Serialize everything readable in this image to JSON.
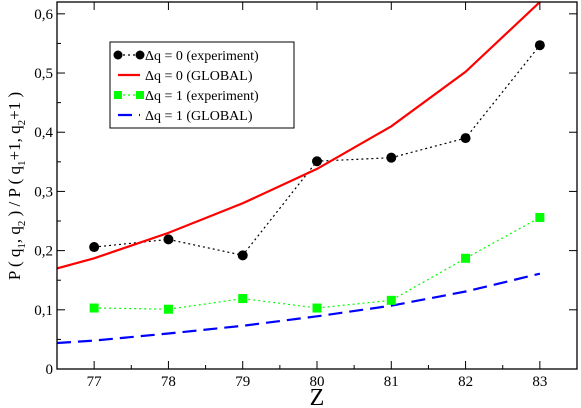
{
  "chart_data": {
    "type": "line",
    "title": "",
    "xlabel": "Z",
    "ylabel": "P ( q1, q2 ) / P ( q1+1, q2+1 )",
    "ylabel_parts": {
      "prefix": "P ( q",
      "sub1": "1",
      "mid1": ", q",
      "sub2": "2",
      "mid2": " ) / P ( q",
      "sub3": "1",
      "mid3": "+1, q",
      "sub4": "2",
      "suffix": "+1 )"
    },
    "xlim": [
      76.5,
      83.5
    ],
    "ylim": [
      0,
      0.62
    ],
    "x_ticks": [
      77,
      78,
      79,
      80,
      81,
      82,
      83
    ],
    "x_tick_labels": [
      "77",
      "78",
      "79",
      "80",
      "81",
      "82",
      "83"
    ],
    "y_ticks": [
      0,
      0.1,
      0.2,
      0.3,
      0.4,
      0.5,
      0.6
    ],
    "y_tick_labels": [
      "0",
      "0,1",
      "0,2",
      "0,3",
      "0,4",
      "0,5",
      "0,6"
    ],
    "grid": false,
    "legend_position": "top-left",
    "series": [
      {
        "name": "Δq = 0 (experiment)",
        "style": "dotted-markers",
        "marker": "circle",
        "color": "#000000",
        "x": [
          77,
          78,
          79,
          80,
          81,
          82,
          83
        ],
        "y": [
          0.206,
          0.219,
          0.192,
          0.351,
          0.357,
          0.39,
          0.547
        ]
      },
      {
        "name": "Δq = 0 (GLOBAL)",
        "style": "solid",
        "color": "#ff0000",
        "x": [
          76.5,
          77,
          78,
          79,
          80,
          81,
          82,
          83
        ],
        "y": [
          0.17,
          0.187,
          0.23,
          0.28,
          0.338,
          0.41,
          0.502,
          0.62
        ]
      },
      {
        "name": "Δq = 1 (experiment)",
        "style": "dotted-markers",
        "marker": "square",
        "color": "#00ff00",
        "x": [
          77,
          78,
          79,
          80,
          81,
          82,
          83
        ],
        "y": [
          0.103,
          0.101,
          0.119,
          0.103,
          0.116,
          0.187,
          0.256
        ]
      },
      {
        "name": "Δq = 1 (GLOBAL)",
        "style": "dashed",
        "color": "#0000ff",
        "x": [
          76.5,
          77,
          78,
          79,
          80,
          81,
          82,
          83
        ],
        "y": [
          0.044,
          0.048,
          0.06,
          0.073,
          0.089,
          0.107,
          0.131,
          0.161
        ]
      }
    ]
  }
}
